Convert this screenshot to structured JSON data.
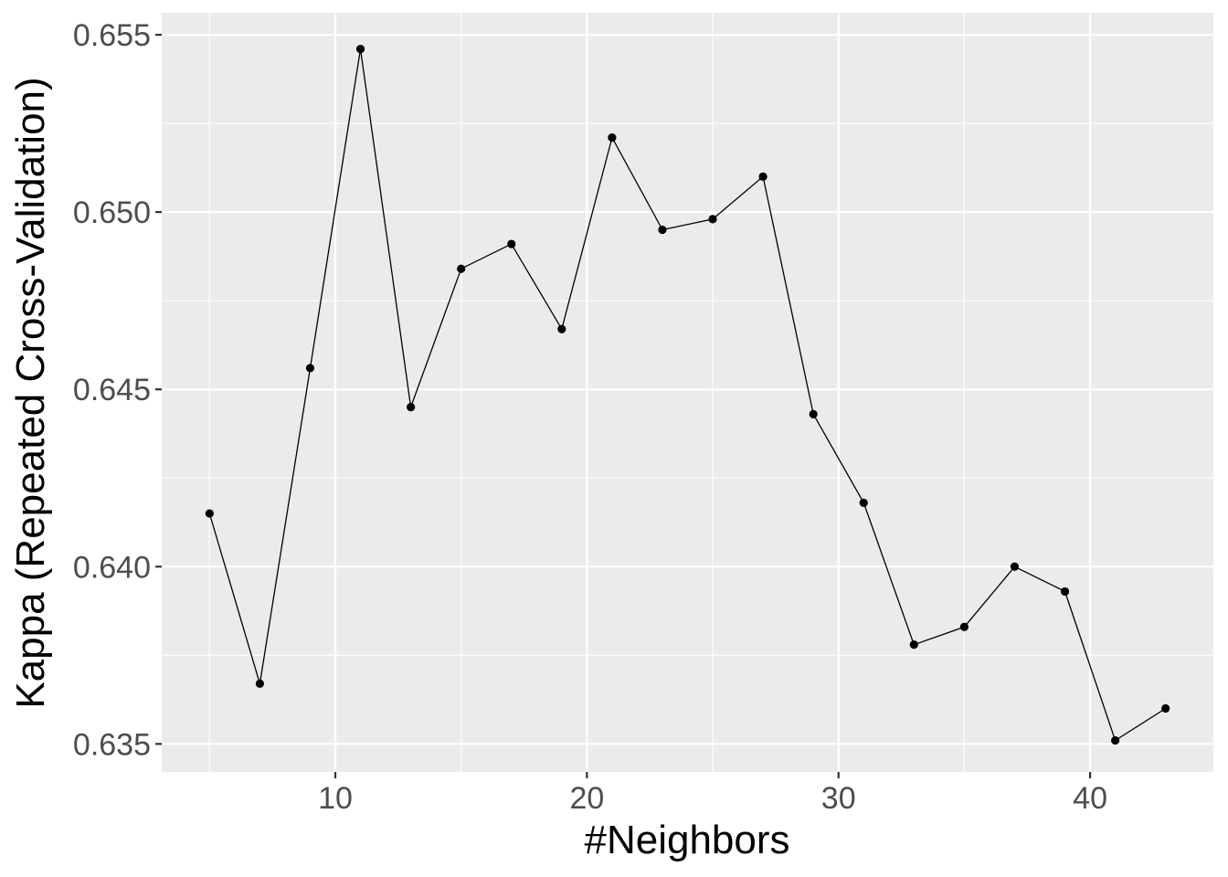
{
  "chart_data": {
    "type": "line",
    "xlabel": "#Neighbors",
    "ylabel": "Kappa (Repeated Cross-Validation)",
    "x": [
      5,
      7,
      9,
      11,
      13,
      15,
      17,
      19,
      21,
      23,
      25,
      27,
      29,
      31,
      33,
      35,
      37,
      39,
      41,
      43
    ],
    "series": [
      {
        "values": [
          0.6415,
          0.6367,
          0.6456,
          0.6546,
          0.6445,
          0.6484,
          0.6491,
          0.6467,
          0.6521,
          0.6495,
          0.6498,
          0.651,
          0.6443,
          0.6418,
          0.6378,
          0.6383,
          0.64,
          0.6393,
          0.6351,
          0.636
        ]
      }
    ],
    "xlim": [
      3.1,
      44.9
    ],
    "ylim": [
      0.63421,
      0.65562
    ],
    "x_ticks": [
      10,
      20,
      30,
      40
    ],
    "x_tick_labels": [
      "10",
      "20",
      "30",
      "40"
    ],
    "x_minor_ticks": [
      5,
      15,
      25,
      35
    ],
    "y_ticks": [
      0.635,
      0.64,
      0.645,
      0.65,
      0.655
    ],
    "y_tick_labels": [
      "0.635",
      "0.640",
      "0.645",
      "0.650",
      "0.655"
    ],
    "y_minor_ticks": [
      0.6375,
      0.6425,
      0.6475,
      0.6525
    ],
    "grid": true,
    "colors": {
      "panel_background": "#ebebeb",
      "grid_line": "#ffffff",
      "series_line": "#000000",
      "point": "#000000",
      "tick_label": "#4d4d4d",
      "axis_title": "#000000"
    }
  }
}
